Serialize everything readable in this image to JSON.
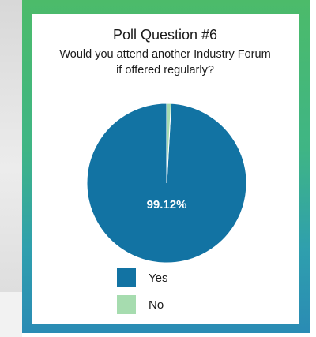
{
  "chart_data": {
    "type": "pie",
    "title": "Poll Question #6",
    "subtitle_lines": [
      "Would you attend another Industry Forum",
      "if offered regularly?"
    ],
    "slices": [
      {
        "label": "Yes",
        "value": 99.12,
        "color": "#1273a3",
        "data_label": "99.12%"
      },
      {
        "label": "No",
        "value": 0.88,
        "color": "#a6dcaf",
        "data_label": ""
      }
    ],
    "legend_position": "bottom"
  }
}
